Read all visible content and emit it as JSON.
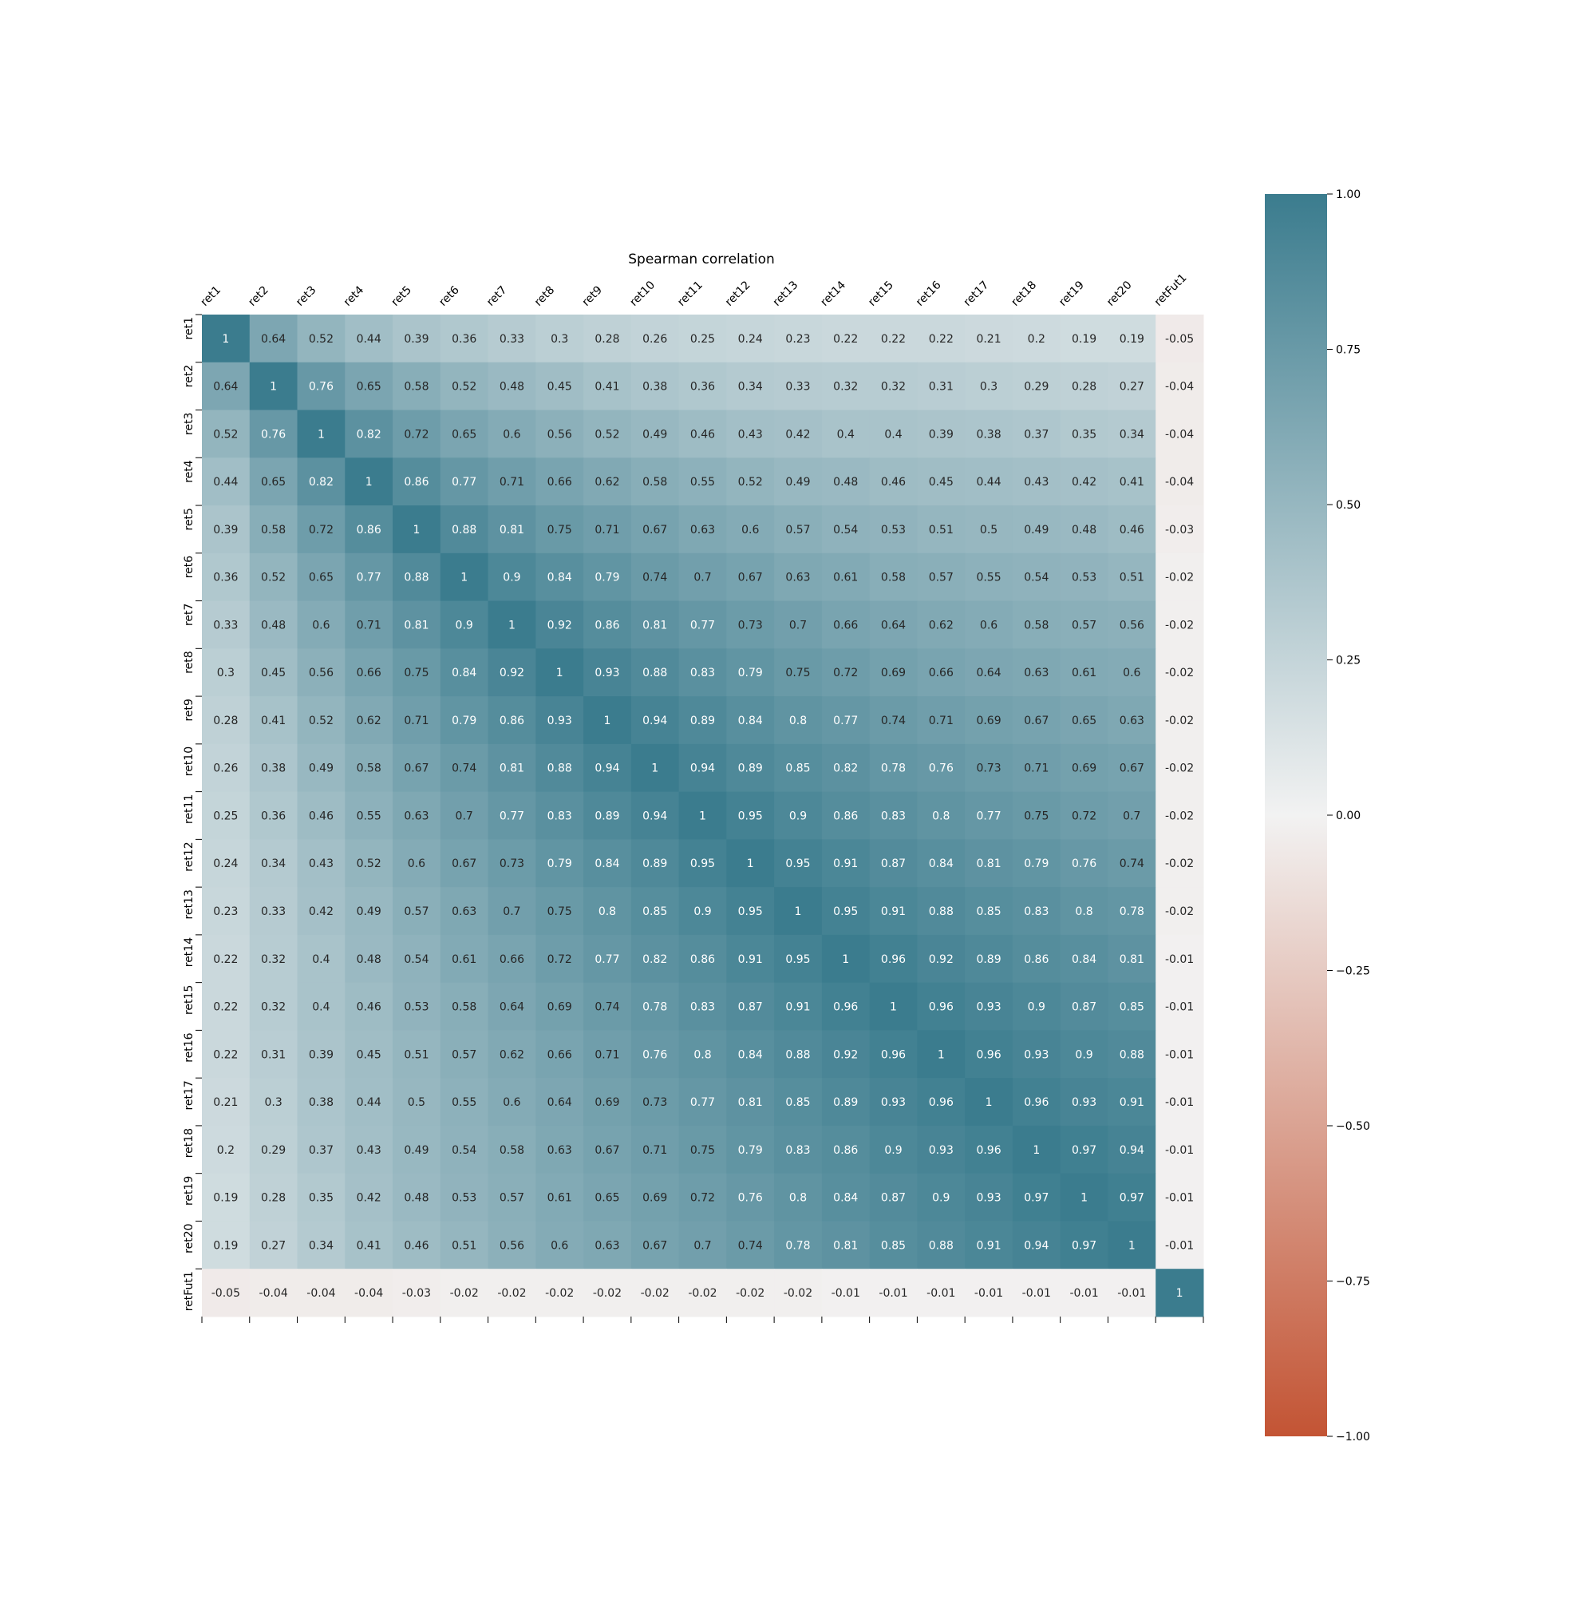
{
  "chart_data": {
    "type": "heatmap",
    "title": "Spearman correlation",
    "xlabel": "",
    "ylabel": "",
    "x_tick_position": "top",
    "grid": false,
    "labels": [
      "ret1",
      "ret2",
      "ret3",
      "ret4",
      "ret5",
      "ret6",
      "ret7",
      "ret8",
      "ret9",
      "ret10",
      "ret11",
      "ret12",
      "ret13",
      "ret14",
      "ret15",
      "ret16",
      "ret17",
      "ret18",
      "ret19",
      "ret20",
      "retFut1"
    ],
    "matrix": [
      [
        1,
        0.64,
        0.52,
        0.44,
        0.39,
        0.36,
        0.33,
        0.3,
        0.28,
        0.26,
        0.25,
        0.24,
        0.23,
        0.22,
        0.22,
        0.22,
        0.21,
        0.2,
        0.19,
        0.19,
        -0.05
      ],
      [
        0.64,
        1,
        0.76,
        0.65,
        0.58,
        0.52,
        0.48,
        0.45,
        0.41,
        0.38,
        0.36,
        0.34,
        0.33,
        0.32,
        0.32,
        0.31,
        0.3,
        0.29,
        0.28,
        0.27,
        -0.04
      ],
      [
        0.52,
        0.76,
        1,
        0.82,
        0.72,
        0.65,
        0.6,
        0.56,
        0.52,
        0.49,
        0.46,
        0.43,
        0.42,
        0.4,
        0.4,
        0.39,
        0.38,
        0.37,
        0.35,
        0.34,
        -0.04
      ],
      [
        0.44,
        0.65,
        0.82,
        1,
        0.86,
        0.77,
        0.71,
        0.66,
        0.62,
        0.58,
        0.55,
        0.52,
        0.49,
        0.48,
        0.46,
        0.45,
        0.44,
        0.43,
        0.42,
        0.41,
        -0.04
      ],
      [
        0.39,
        0.58,
        0.72,
        0.86,
        1,
        0.88,
        0.81,
        0.75,
        0.71,
        0.67,
        0.63,
        0.6,
        0.57,
        0.54,
        0.53,
        0.51,
        0.5,
        0.49,
        0.48,
        0.46,
        -0.03
      ],
      [
        0.36,
        0.52,
        0.65,
        0.77,
        0.88,
        1,
        0.9,
        0.84,
        0.79,
        0.74,
        0.7,
        0.67,
        0.63,
        0.61,
        0.58,
        0.57,
        0.55,
        0.54,
        0.53,
        0.51,
        -0.02
      ],
      [
        0.33,
        0.48,
        0.6,
        0.71,
        0.81,
        0.9,
        1,
        0.92,
        0.86,
        0.81,
        0.77,
        0.73,
        0.7,
        0.66,
        0.64,
        0.62,
        0.6,
        0.58,
        0.57,
        0.56,
        -0.02
      ],
      [
        0.3,
        0.45,
        0.56,
        0.66,
        0.75,
        0.84,
        0.92,
        1,
        0.93,
        0.88,
        0.83,
        0.79,
        0.75,
        0.72,
        0.69,
        0.66,
        0.64,
        0.63,
        0.61,
        0.6,
        -0.02
      ],
      [
        0.28,
        0.41,
        0.52,
        0.62,
        0.71,
        0.79,
        0.86,
        0.93,
        1,
        0.94,
        0.89,
        0.84,
        0.8,
        0.77,
        0.74,
        0.71,
        0.69,
        0.67,
        0.65,
        0.63,
        -0.02
      ],
      [
        0.26,
        0.38,
        0.49,
        0.58,
        0.67,
        0.74,
        0.81,
        0.88,
        0.94,
        1,
        0.94,
        0.89,
        0.85,
        0.82,
        0.78,
        0.76,
        0.73,
        0.71,
        0.69,
        0.67,
        -0.02
      ],
      [
        0.25,
        0.36,
        0.46,
        0.55,
        0.63,
        0.7,
        0.77,
        0.83,
        0.89,
        0.94,
        1,
        0.95,
        0.9,
        0.86,
        0.83,
        0.8,
        0.77,
        0.75,
        0.72,
        0.7,
        -0.02
      ],
      [
        0.24,
        0.34,
        0.43,
        0.52,
        0.6,
        0.67,
        0.73,
        0.79,
        0.84,
        0.89,
        0.95,
        1,
        0.95,
        0.91,
        0.87,
        0.84,
        0.81,
        0.79,
        0.76,
        0.74,
        -0.02
      ],
      [
        0.23,
        0.33,
        0.42,
        0.49,
        0.57,
        0.63,
        0.7,
        0.75,
        0.8,
        0.85,
        0.9,
        0.95,
        1,
        0.95,
        0.91,
        0.88,
        0.85,
        0.83,
        0.8,
        0.78,
        -0.02
      ],
      [
        0.22,
        0.32,
        0.4,
        0.48,
        0.54,
        0.61,
        0.66,
        0.72,
        0.77,
        0.82,
        0.86,
        0.91,
        0.95,
        1,
        0.96,
        0.92,
        0.89,
        0.86,
        0.84,
        0.81,
        -0.01
      ],
      [
        0.22,
        0.32,
        0.4,
        0.46,
        0.53,
        0.58,
        0.64,
        0.69,
        0.74,
        0.78,
        0.83,
        0.87,
        0.91,
        0.96,
        1,
        0.96,
        0.93,
        0.9,
        0.87,
        0.85,
        -0.01
      ],
      [
        0.22,
        0.31,
        0.39,
        0.45,
        0.51,
        0.57,
        0.62,
        0.66,
        0.71,
        0.76,
        0.8,
        0.84,
        0.88,
        0.92,
        0.96,
        1,
        0.96,
        0.93,
        0.9,
        0.88,
        -0.01
      ],
      [
        0.21,
        0.3,
        0.38,
        0.44,
        0.5,
        0.55,
        0.6,
        0.64,
        0.69,
        0.73,
        0.77,
        0.81,
        0.85,
        0.89,
        0.93,
        0.96,
        1,
        0.96,
        0.93,
        0.91,
        -0.01
      ],
      [
        0.2,
        0.29,
        0.37,
        0.43,
        0.49,
        0.54,
        0.58,
        0.63,
        0.67,
        0.71,
        0.75,
        0.79,
        0.83,
        0.86,
        0.9,
        0.93,
        0.96,
        1,
        0.97,
        0.94,
        -0.01
      ],
      [
        0.19,
        0.28,
        0.35,
        0.42,
        0.48,
        0.53,
        0.57,
        0.61,
        0.65,
        0.69,
        0.72,
        0.76,
        0.8,
        0.84,
        0.87,
        0.9,
        0.93,
        0.97,
        1,
        0.97,
        -0.01
      ],
      [
        0.19,
        0.27,
        0.34,
        0.41,
        0.46,
        0.51,
        0.56,
        0.6,
        0.63,
        0.67,
        0.7,
        0.74,
        0.78,
        0.81,
        0.85,
        0.88,
        0.91,
        0.94,
        0.97,
        1,
        -0.01
      ],
      [
        -0.05,
        -0.04,
        -0.04,
        -0.04,
        -0.03,
        -0.02,
        -0.02,
        -0.02,
        -0.02,
        -0.02,
        -0.02,
        -0.02,
        -0.02,
        -0.01,
        -0.01,
        -0.01,
        -0.01,
        -0.01,
        -0.01,
        -0.01,
        1
      ]
    ],
    "colorbar": {
      "vmin": -1,
      "vmax": 1,
      "ticks": [
        1,
        0.75,
        0.5,
        0.25,
        0,
        -0.25,
        -0.5,
        -0.75,
        -1
      ],
      "tick_labels": [
        "1.00",
        "0.75",
        "0.50",
        "0.25",
        "0.00",
        "−0.25",
        "−0.50",
        "−0.75",
        "−1.00"
      ],
      "colors": {
        "positive": "#3b7c8e",
        "center": "#f2f2f2",
        "negative": "#c35434"
      }
    }
  }
}
